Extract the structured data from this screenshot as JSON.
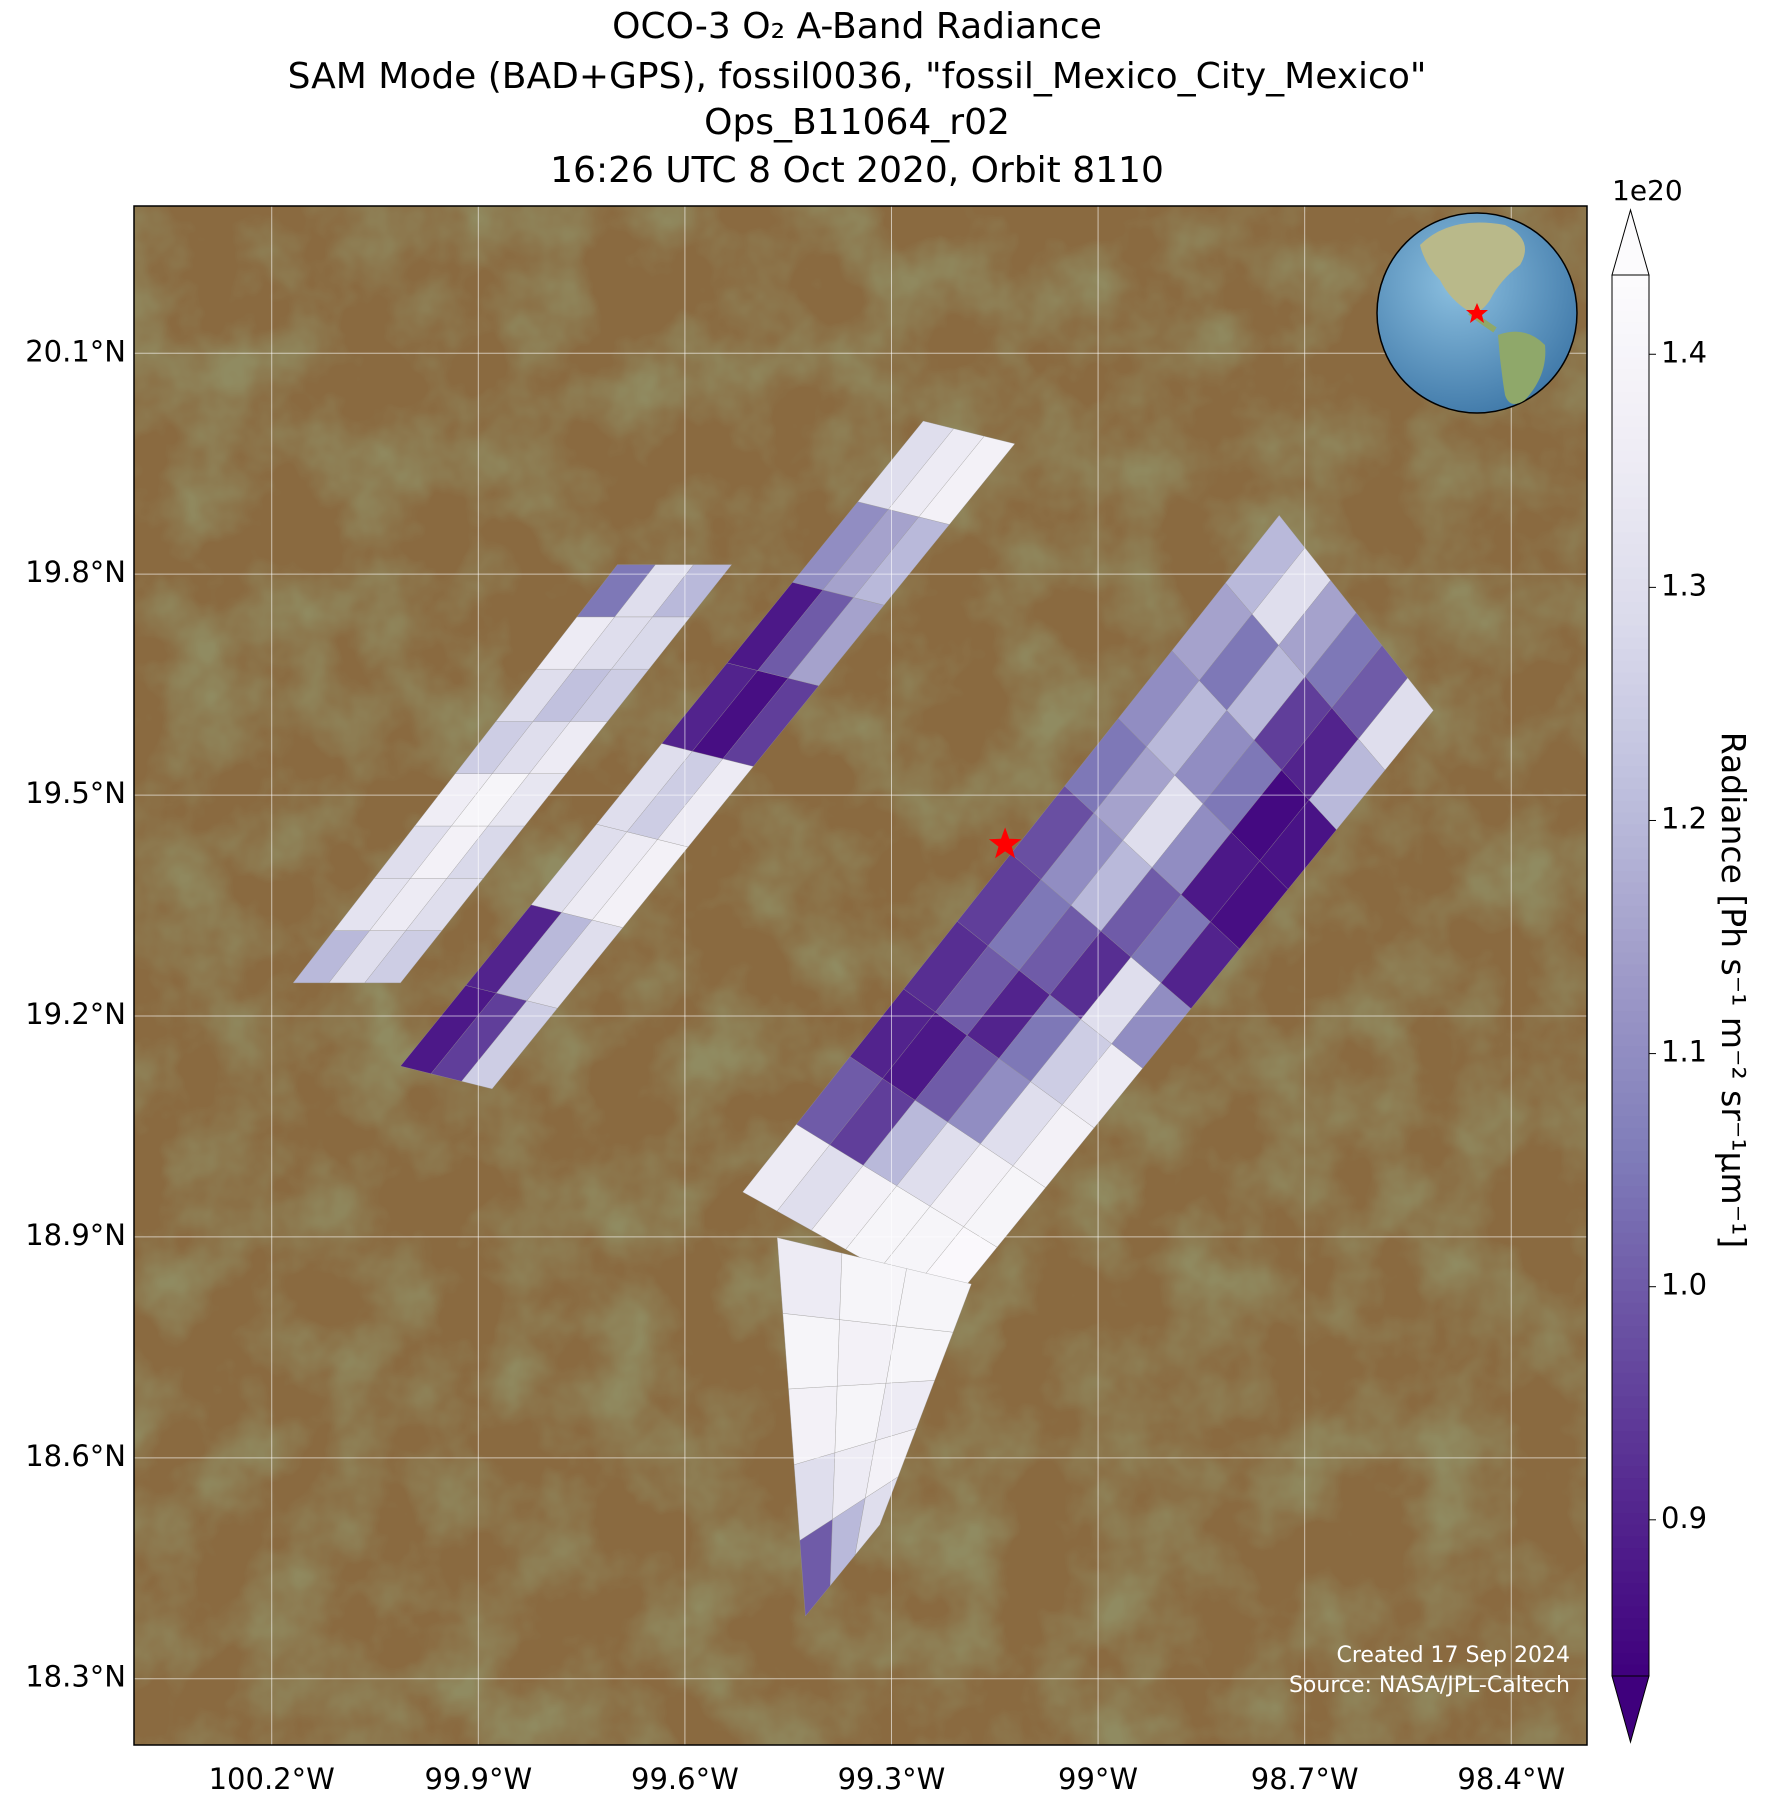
{
  "chart_data": {
    "type": "swath-map",
    "title": [
      "OCO-3 O₂ A-Band Radiance",
      "SAM Mode (BAD+GPS), fossil0036, \"fossil_Mexico_City_Mexico\"",
      "Ops_B11064_r02",
      "16:26 UTC 8 Oct 2020, Orbit 8110"
    ],
    "xlim": [
      -100.4,
      -98.29
    ],
    "ylim": [
      18.21,
      20.3
    ],
    "xticks": [
      {
        "value": -100.2,
        "label": "100.2°W"
      },
      {
        "value": -99.9,
        "label": "99.9°W"
      },
      {
        "value": -99.6,
        "label": "99.6°W"
      },
      {
        "value": -99.3,
        "label": "99.3°W"
      },
      {
        "value": -99.0,
        "label": "99°W"
      },
      {
        "value": -98.7,
        "label": "98.7°W"
      },
      {
        "value": -98.4,
        "label": "98.4°W"
      }
    ],
    "yticks": [
      {
        "value": 20.1,
        "label": "20.1°N"
      },
      {
        "value": 19.8,
        "label": "19.8°N"
      },
      {
        "value": 19.5,
        "label": "19.5°N"
      },
      {
        "value": 19.2,
        "label": "19.2°N"
      },
      {
        "value": 18.9,
        "label": "18.9°N"
      },
      {
        "value": 18.6,
        "label": "18.6°N"
      },
      {
        "value": 18.3,
        "label": "18.3°N"
      }
    ],
    "grid": true,
    "colorbar": {
      "label": "Radiance [Ph s⁻¹ m⁻² sr⁻¹μm⁻¹]",
      "offset_text": "1e20",
      "clim": [
        0.833,
        1.434
      ],
      "ticks": [
        0.9,
        1.0,
        1.1,
        1.2,
        1.3,
        1.4
      ],
      "tick_labels": [
        "0.9",
        "1.0",
        "1.1",
        "1.2",
        "1.3",
        "1.4"
      ],
      "extend": "both",
      "colors": [
        "#3f007d",
        "#54278f",
        "#6a51a3",
        "#807dba",
        "#9e9ac8",
        "#bcbddc",
        "#dadaeb",
        "#efedf5",
        "#fcfbfd"
      ]
    },
    "swaths": [
      {
        "corners": [
          [
            -100.169,
            19.245
          ],
          [
            -100.013,
            19.245
          ],
          [
            -99.532,
            19.813
          ],
          [
            -99.698,
            19.813
          ]
        ],
        "values": [
          [
            1.2,
            1.3,
            1.25
          ],
          [
            1.32,
            1.35,
            1.3
          ],
          [
            1.3,
            1.38,
            1.28
          ],
          [
            1.36,
            1.4,
            1.33
          ],
          [
            1.25,
            1.3,
            1.35
          ],
          [
            1.3,
            1.22,
            1.25
          ],
          [
            1.35,
            1.3,
            1.28
          ],
          [
            1.05,
            1.3,
            1.2
          ]
        ]
      },
      {
        "corners": [
          [
            -100.013,
            19.132
          ],
          [
            -99.88,
            19.101
          ],
          [
            -99.121,
            19.977
          ],
          [
            -99.254,
            20.008
          ]
        ],
        "values": [
          [
            0.88,
            0.95,
            1.25
          ],
          [
            0.9,
            1.2,
            1.3
          ],
          [
            1.3,
            1.35,
            1.38
          ],
          [
            1.3,
            1.25,
            1.35
          ],
          [
            0.9,
            0.86,
            0.95
          ],
          [
            0.88,
            1.0,
            1.15
          ],
          [
            1.1,
            1.15,
            1.2
          ],
          [
            1.3,
            1.35,
            1.38
          ]
        ]
      },
      {
        "corners": [
          [
            -99.516,
            18.961
          ],
          [
            -99.217,
            18.805
          ],
          [
            -98.513,
            19.615
          ],
          [
            -98.737,
            19.88
          ]
        ],
        "values": [
          [
            1.35,
            1.3,
            1.38,
            1.4,
            1.4,
            1.42
          ],
          [
            1.0,
            0.95,
            1.2,
            1.3,
            1.38,
            1.4
          ],
          [
            0.9,
            0.88,
            1.0,
            1.1,
            1.3,
            1.38
          ],
          [
            0.92,
            1.0,
            0.9,
            1.05,
            1.25,
            1.35
          ],
          [
            0.95,
            1.05,
            1.0,
            0.92,
            1.3,
            1.1
          ],
          [
            0.98,
            1.1,
            1.2,
            1.0,
            1.05,
            0.9
          ],
          [
            1.05,
            1.15,
            1.3,
            1.1,
            0.88,
            0.86
          ],
          [
            1.1,
            1.2,
            1.1,
            1.05,
            0.85,
            0.87
          ],
          [
            1.15,
            1.05,
            1.2,
            0.95,
            0.9,
            1.2
          ],
          [
            1.2,
            1.3,
            1.15,
            1.05,
            1.0,
            1.3
          ]
        ]
      },
      {
        "corners": [
          [
            -99.425,
            18.385
          ],
          [
            -99.317,
            18.509
          ],
          [
            -99.184,
            18.836
          ],
          [
            -99.466,
            18.899
          ]
        ],
        "values": [
          [
            1.0,
            1.2,
            1.3
          ],
          [
            1.3,
            1.35,
            1.38
          ],
          [
            1.38,
            1.4,
            1.35
          ],
          [
            1.4,
            1.38,
            1.4
          ],
          [
            1.35,
            1.4,
            1.4
          ]
        ]
      }
    ],
    "marker": {
      "lon": -99.135,
      "lat": 19.433,
      "color": "#ff0000"
    },
    "footer": [
      "Created 17 Sep 2024",
      "Source: NASA/JPL-Caltech"
    ]
  }
}
